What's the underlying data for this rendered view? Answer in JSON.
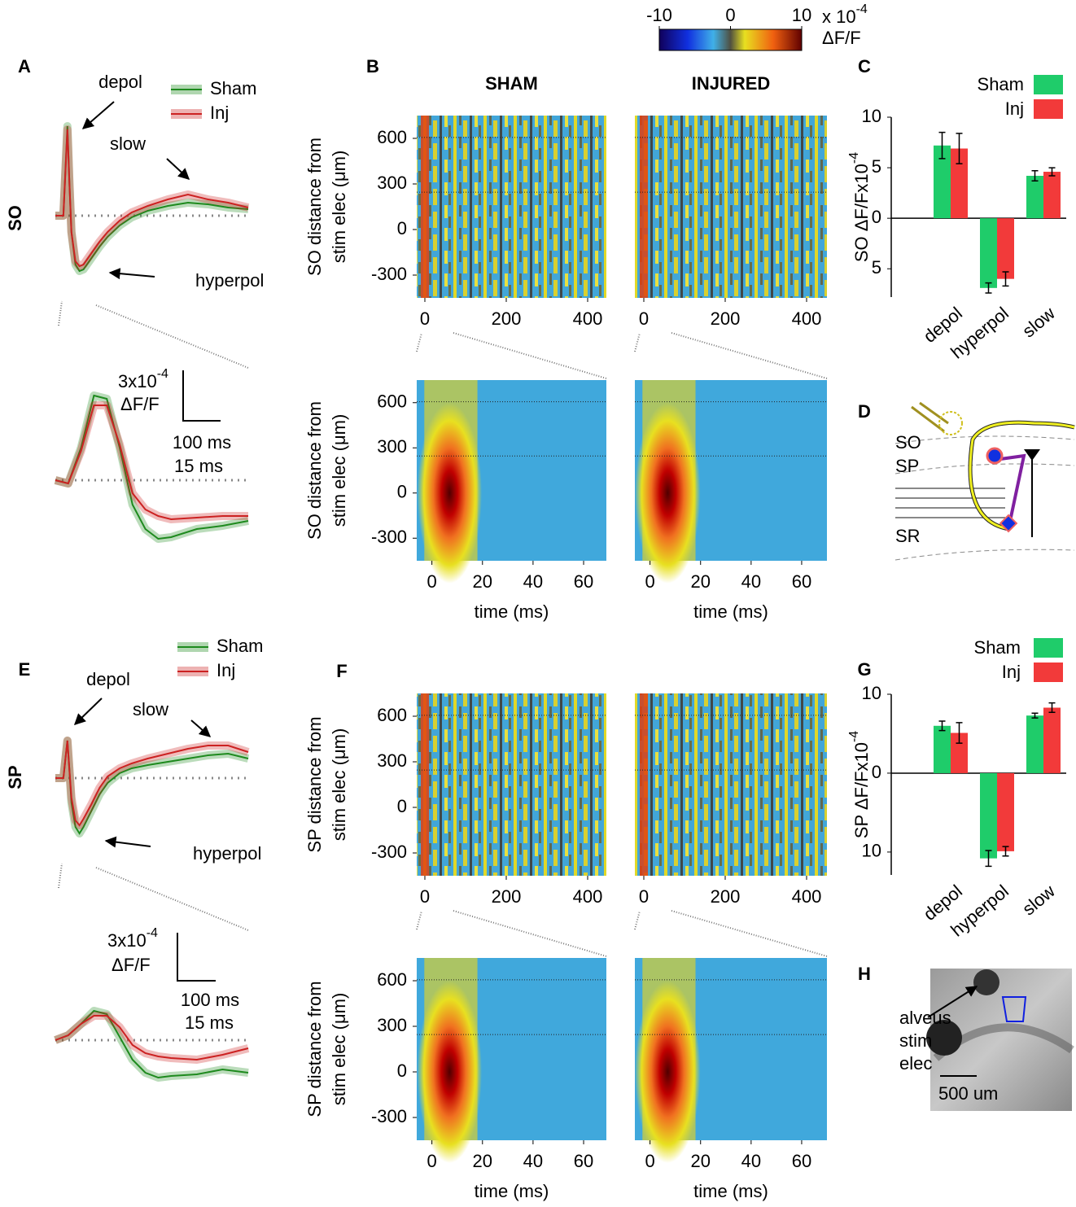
{
  "panel_labels": [
    "A",
    "B",
    "C",
    "D",
    "E",
    "F",
    "G",
    "H"
  ],
  "row_labels": [
    "SO",
    "SP"
  ],
  "diagram": {
    "layers": [
      "SO",
      "SP",
      "SR"
    ]
  },
  "image": {
    "labels": [
      "alveus",
      "stim",
      "elec"
    ],
    "scale": "500 um"
  },
  "chart_data": [
    {
      "type": "colorbar",
      "xlim": [
        -10,
        10
      ],
      "xticks": [
        -10,
        0,
        10
      ],
      "exponent_base": "x 10",
      "exponent": "-4",
      "label": "ΔF/F"
    },
    {
      "type": "line",
      "x": [
        -30,
        -10,
        0,
        5,
        10,
        20,
        30,
        40,
        60,
        80,
        100,
        130,
        160,
        200,
        250,
        300,
        350,
        400,
        450
      ],
      "xlim": [
        -30,
        450
      ],
      "ylim": [
        -5,
        6.5
      ],
      "series": [
        {
          "name": "Sham",
          "color": "#1e8a1e",
          "values": [
            0,
            0,
            5.5,
            2,
            -1,
            -3,
            -3.4,
            -3.3,
            -2.6,
            -1.9,
            -1.3,
            -0.6,
            -0.1,
            0.3,
            0.6,
            0.8,
            0.7,
            0.5,
            0.4
          ]
        },
        {
          "name": "Inj",
          "color": "#cc2222",
          "values": [
            0,
            0,
            5.3,
            2,
            -1,
            -2.8,
            -3.1,
            -3,
            -2.3,
            -1.6,
            -1,
            -0.3,
            0.2,
            0.6,
            1,
            1.3,
            1,
            0.8,
            0.5
          ]
        }
      ],
      "annotations": [
        "depol",
        "slow",
        "hyperpol"
      ]
    },
    {
      "type": "line",
      "x": [
        -5,
        0,
        5,
        10,
        15,
        20,
        25,
        30,
        35,
        40,
        50,
        60,
        70
      ],
      "xlim": [
        -5,
        70
      ],
      "ylim": [
        -4,
        6.5
      ],
      "series": [
        {
          "name": "Sham",
          "color": "#1e8a1e",
          "values": [
            0,
            -0.2,
            2,
            5.2,
            5,
            2,
            -1.5,
            -3,
            -3.6,
            -3.5,
            -3,
            -2.8,
            -2.5
          ]
        },
        {
          "name": "Inj",
          "color": "#cc2222",
          "values": [
            0,
            -0.2,
            1.8,
            4.6,
            4.6,
            2.2,
            -0.8,
            -1.8,
            -2.2,
            -2.4,
            -2.3,
            -2.2,
            -2.2
          ]
        }
      ],
      "scale_y": "3x10",
      "scale_y_exp": "-4",
      "scale_y_unit": "ΔF/F",
      "scale_x": [
        "100 ms",
        "15 ms"
      ]
    },
    {
      "type": "heatmap",
      "title": "SHAM",
      "xlim": [
        -20,
        446
      ],
      "ylim": [
        -450,
        750
      ],
      "xticks": [
        0,
        200,
        400
      ],
      "yticks": [
        600,
        300,
        0,
        -300
      ],
      "ylabel": [
        "SO distance from",
        "stim elec (μm)"
      ]
    },
    {
      "type": "heatmap",
      "title": "INJURED",
      "xlim": [
        -22,
        450
      ],
      "ylim": [
        -450,
        750
      ],
      "xticks": [
        0,
        200,
        400
      ]
    },
    {
      "type": "heatmap",
      "xlim": [
        -6,
        69
      ],
      "ylim": [
        -450,
        750
      ],
      "xticks": [
        0,
        20,
        40,
        60
      ],
      "yticks": [
        600,
        300,
        0,
        -300
      ],
      "ylabel": [
        "SO distance from",
        "stim elec (μm)"
      ],
      "xlabel": "time (ms)"
    },
    {
      "type": "heatmap",
      "xlim": [
        -6,
        70
      ],
      "ylim": [
        -450,
        750
      ],
      "xticks": [
        0,
        20,
        40,
        60
      ],
      "xlabel": "time (ms)"
    },
    {
      "type": "bar",
      "categories": [
        "depol",
        "hyperpol",
        "slow"
      ],
      "ylabel": "SO  ΔF/Fx10",
      "ylabel_exp": "-4",
      "ylim": [
        -7.8,
        10
      ],
      "yticks": [
        10,
        5,
        0,
        {
          "value": -5,
          "label": "5"
        }
      ],
      "series": [
        {
          "name": "Sham",
          "color": "#1fcc6a",
          "values": [
            7.2,
            -6.9,
            4.2
          ],
          "errors": [
            1.3,
            0.5,
            0.5
          ]
        },
        {
          "name": "Inj",
          "color": "#f23a3a",
          "values": [
            6.9,
            -6.0,
            4.6
          ],
          "errors": [
            1.5,
            0.7,
            0.4
          ]
        }
      ]
    },
    {
      "type": "line",
      "x": [
        -30,
        -10,
        0,
        5,
        10,
        20,
        30,
        40,
        60,
        80,
        100,
        130,
        160,
        200,
        250,
        300,
        350,
        400,
        450
      ],
      "xlim": [
        -30,
        450
      ],
      "ylim": [
        -4.5,
        3.8
      ],
      "series": [
        {
          "name": "Sham",
          "color": "#1e8a1e",
          "values": [
            0,
            0,
            2.3,
            0.5,
            -1.5,
            -3,
            -3.4,
            -3,
            -2,
            -1,
            -0.3,
            0.3,
            0.6,
            0.8,
            1,
            1.2,
            1.4,
            1.5,
            1.2
          ]
        },
        {
          "name": "Inj",
          "color": "#cc2222",
          "values": [
            0,
            0,
            2.3,
            0.5,
            -1.2,
            -2.6,
            -2.9,
            -2.5,
            -1.6,
            -0.6,
            0.1,
            0.6,
            0.9,
            1.2,
            1.5,
            1.8,
            2,
            2,
            1.6
          ]
        }
      ],
      "annotations": [
        "depol",
        "slow",
        "hyperpol"
      ]
    },
    {
      "type": "line",
      "x": [
        -5,
        0,
        5,
        10,
        15,
        20,
        25,
        30,
        35,
        40,
        50,
        60,
        70
      ],
      "xlim": [
        -5,
        70
      ],
      "ylim": [
        -3.5,
        4
      ],
      "series": [
        {
          "name": "Sham",
          "color": "#1e8a1e",
          "values": [
            0,
            0.3,
            1,
            1.8,
            1.6,
            0.2,
            -1.2,
            -2,
            -2.3,
            -2.2,
            -2.1,
            -1.8,
            -2
          ]
        },
        {
          "name": "Inj",
          "color": "#cc2222",
          "values": [
            0,
            0.3,
            1,
            1.5,
            1.5,
            0.8,
            -0.3,
            -0.8,
            -1,
            -1.1,
            -1.2,
            -0.9,
            -0.5
          ]
        }
      ],
      "scale_y": "3x10",
      "scale_y_exp": "-4",
      "scale_y_unit": "ΔF/F",
      "scale_x": [
        "100 ms",
        "15 ms"
      ]
    },
    {
      "type": "heatmap",
      "xlim": [
        -20,
        446
      ],
      "ylim": [
        -450,
        750
      ],
      "xticks": [
        0,
        200,
        400
      ],
      "yticks": [
        600,
        300,
        0,
        -300
      ],
      "ylabel": [
        "SP distance from",
        "stim elec (μm)"
      ]
    },
    {
      "type": "heatmap",
      "xlim": [
        -22,
        450
      ],
      "ylim": [
        -450,
        750
      ],
      "xticks": [
        0,
        200,
        400
      ]
    },
    {
      "type": "heatmap",
      "xlim": [
        -6,
        69
      ],
      "ylim": [
        -450,
        750
      ],
      "xticks": [
        0,
        20,
        40,
        60
      ],
      "yticks": [
        600,
        300,
        0,
        -300
      ],
      "ylabel": [
        "SP distance from",
        "stim elec (μm)"
      ],
      "xlabel": "time (ms)"
    },
    {
      "type": "heatmap",
      "xlim": [
        -6,
        70
      ],
      "ylim": [
        -450,
        750
      ],
      "xticks": [
        0,
        20,
        40,
        60
      ],
      "xlabel": "time (ms)"
    },
    {
      "type": "bar",
      "categories": [
        "depol",
        "hyperpol",
        "slow"
      ],
      "ylabel": "SP  ΔF/Fx10",
      "ylabel_exp": "-4",
      "ylim": [
        -12.9,
        10
      ],
      "yticks": [
        10,
        0,
        {
          "value": -10,
          "label": "10"
        }
      ],
      "series": [
        {
          "name": "Sham",
          "color": "#1fcc6a",
          "values": [
            6.0,
            -10.8,
            7.3
          ],
          "errors": [
            0.6,
            1.0,
            0.3
          ]
        },
        {
          "name": "Inj",
          "color": "#f23a3a",
          "values": [
            5.1,
            -9.9,
            8.3
          ],
          "errors": [
            1.3,
            0.6,
            0.6
          ]
        }
      ]
    }
  ]
}
